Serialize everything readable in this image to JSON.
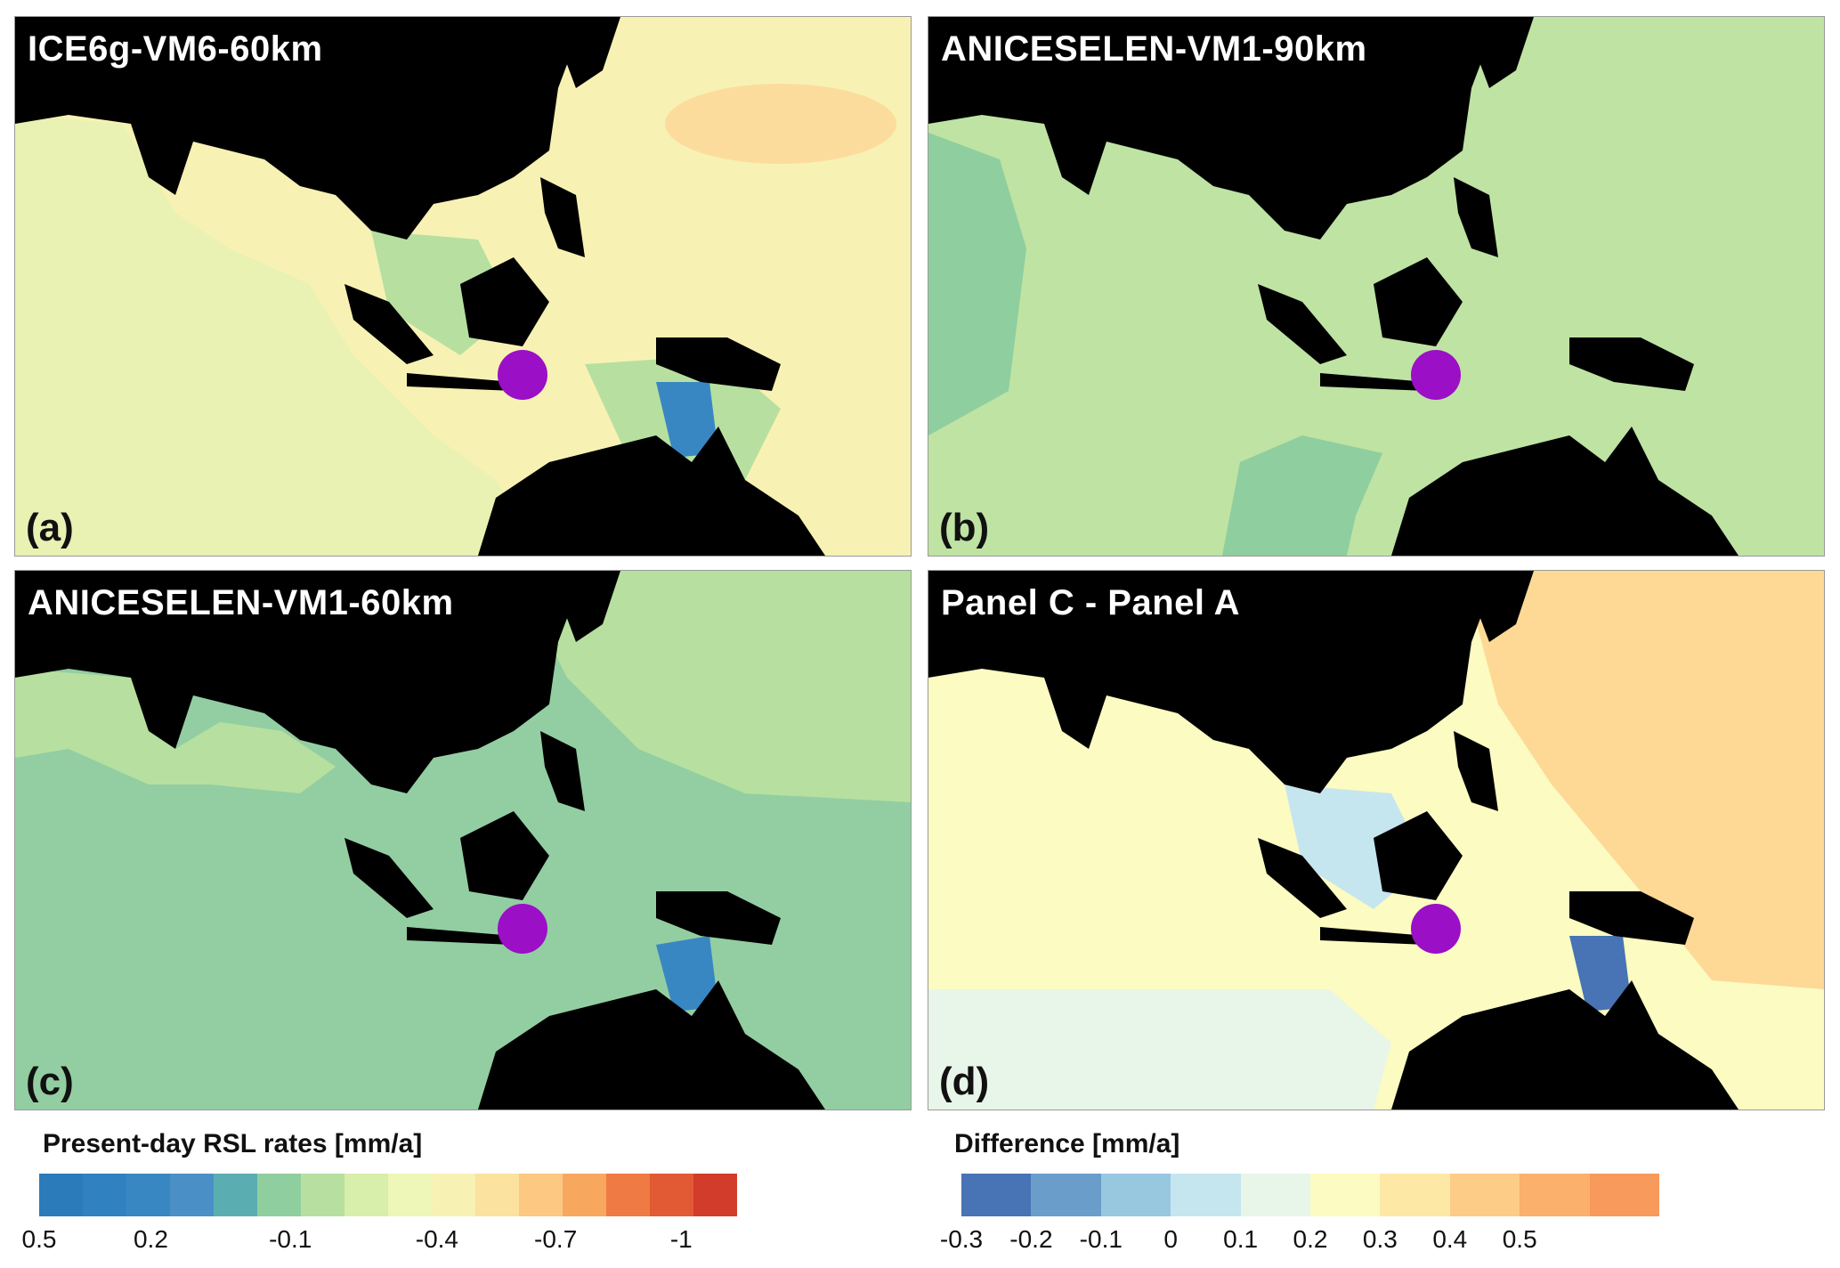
{
  "panels": [
    {
      "title": "ICE6g-VM6-60km",
      "letter": "(a)"
    },
    {
      "title": "ANICESELEN-VM1-90km",
      "letter": "(b)"
    },
    {
      "title": "ANICESELEN-VM1-60km",
      "letter": "(c)"
    },
    {
      "title": "Panel C - Panel A",
      "letter": "(d)"
    }
  ],
  "legend_rsl": {
    "title": "Present-day RSL rates [mm/a]",
    "tick_labels": [
      "0.5",
      "0.2",
      "-0.1",
      "-0.4",
      "-0.7",
      "-1"
    ],
    "colors": [
      "#2b7bba",
      "#2f81bf",
      "#3987c2",
      "#4a90c6",
      "#5aaeb2",
      "#8fce9f",
      "#b7e0a0",
      "#d8eeab",
      "#eef6b8",
      "#f7f2b3",
      "#fbe29e",
      "#fcc882",
      "#f8a75f",
      "#f07a44",
      "#e25a33",
      "#d13d2a"
    ]
  },
  "legend_diff": {
    "title": "Difference [mm/a]",
    "tick_labels": [
      "-0.3",
      "-0.2",
      "-0.1",
      "0",
      "0.1",
      "0.2",
      "0.3",
      "0.4",
      "0.5"
    ],
    "colors": [
      "#4873b5",
      "#6b9dcb",
      "#97c8e0",
      "#c6e6ef",
      "#e8f5e9",
      "#fbfbc2",
      "#fde8a6",
      "#fdcc86",
      "#fbb06c",
      "#f79a5b"
    ]
  },
  "marker": {
    "color": "#9b0fc7",
    "name": "site-marker"
  },
  "panel_colors": {
    "a": {
      "ocean": "#f7f2b3",
      "coastal": "#e6f2b0",
      "accent": "#fcc882"
    },
    "b": {
      "ocean": "#bfe3a3",
      "coastal": "#9bd6a3",
      "accent": "#8fce9f"
    },
    "c": {
      "ocean": "#93cea2",
      "coastal": "#b7e0a0",
      "accent": "#3987c2"
    },
    "d": {
      "ocean": "#fbfbc2",
      "coastal": "#e8f5e9",
      "accent": "#fdd995"
    }
  }
}
